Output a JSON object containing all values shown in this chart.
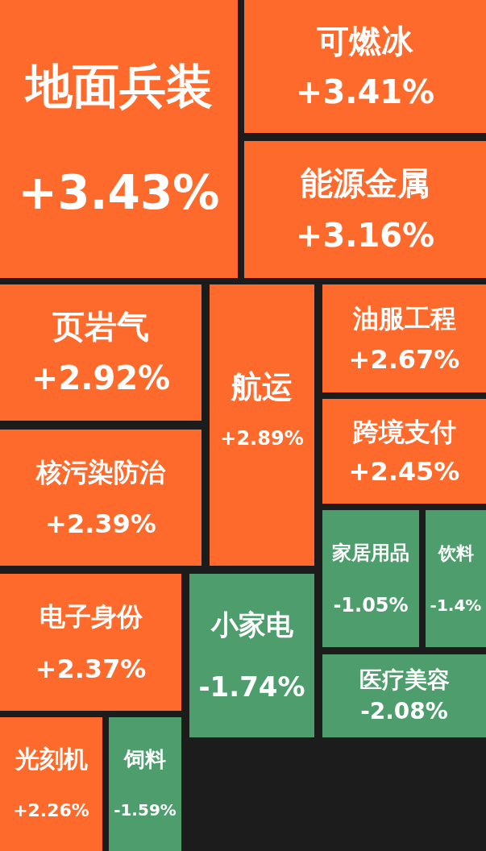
{
  "chart_data": {
    "type": "other",
    "categories": [
      "地面兵装",
      "可燃冰",
      "能源金属",
      "页岩气",
      "航运",
      "油服工程",
      "跨境支付",
      "核污染防治",
      "家居用品",
      "饮料",
      "电子身份",
      "小家电",
      "医疗美容",
      "光刻机",
      "饲料"
    ],
    "values": [
      3.43,
      3.41,
      3.16,
      2.92,
      2.89,
      2.67,
      2.45,
      2.39,
      -1.05,
      -1.4,
      2.37,
      -1.74,
      -2.08,
      2.26,
      -1.59
    ],
    "value_labels": [
      "+3.43%",
      "+3.41%",
      "+3.16%",
      "+2.92%",
      "+2.89%",
      "+2.67%",
      "+2.45%",
      "+2.39%",
      "-1.05%",
      "-1.4%",
      "+2.37%",
      "-1.74%",
      "-2.08%",
      "+2.26%",
      "-1.59%"
    ],
    "colors": [
      "#fd6a2b",
      "#fd6a2b",
      "#fd6a2b",
      "#fd6a2b",
      "#fd6a2b",
      "#fd6a2b",
      "#fd6a2b",
      "#fd6a2b",
      "#4e9d6d",
      "#4e9d6d",
      "#fd6a2b",
      "#4e9d6d",
      "#4e9d6d",
      "#fd6a2b",
      "#4e9d6d"
    ]
  }
}
